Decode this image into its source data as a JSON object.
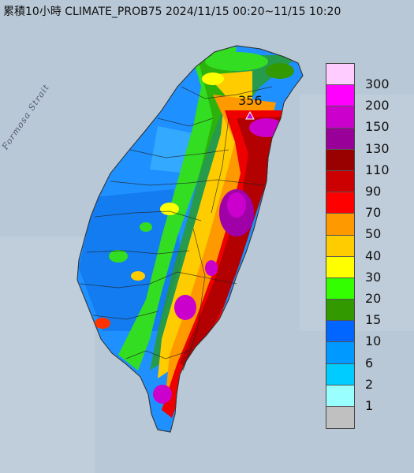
{
  "title": "累積10小時 CLIMATE_PROB75 2024/11/15 00:20~11/15 10:20",
  "max_marker": {
    "label": "356",
    "icon": "triangle-marker-icon"
  },
  "strait_label": "Formosa Strait",
  "legend": {
    "levels": [
      {
        "label": "300",
        "color": "#ffccff"
      },
      {
        "label": "200",
        "color": "#ff00ff"
      },
      {
        "label": "150",
        "color": "#cc00cc"
      },
      {
        "label": "130",
        "color": "#990099"
      },
      {
        "label": "110",
        "color": "#990000"
      },
      {
        "label": "90",
        "color": "#cc0000"
      },
      {
        "label": "70",
        "color": "#ff0000"
      },
      {
        "label": "50",
        "color": "#ff9900"
      },
      {
        "label": "40",
        "color": "#ffcc00"
      },
      {
        "label": "30",
        "color": "#ffff00"
      },
      {
        "label": "20",
        "color": "#33ff00"
      },
      {
        "label": "15",
        "color": "#339900"
      },
      {
        "label": "10",
        "color": "#0066ff"
      },
      {
        "label": "6",
        "color": "#0099ff"
      },
      {
        "label": "2",
        "color": "#00ccff"
      },
      {
        "label": "1",
        "color": "#99ffff"
      },
      {
        "label": "",
        "color": "#c0c0c0"
      }
    ]
  }
}
